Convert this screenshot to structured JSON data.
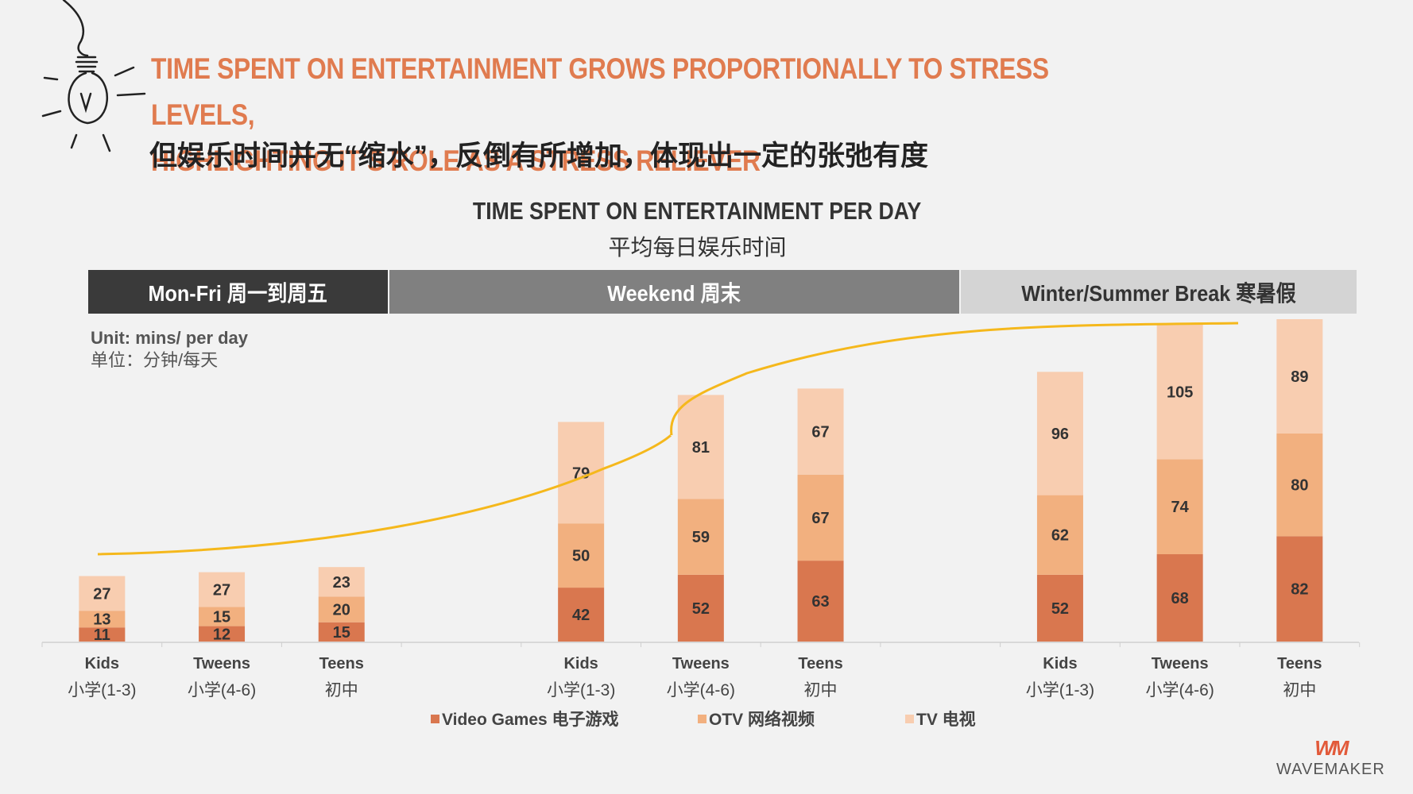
{
  "header": {
    "line1": "TIME SPENT ON ENTERTAINMENT GROWS PROPORTIONALLY TO STRESS LEVELS,",
    "line2": "HIGHLIGHTING IT’S ROLE AS A STRESS RELIEVER",
    "subtitle_cn": "但娱乐时间并无“缩水”，反倒有所增加，体现出一定的张弛有度"
  },
  "periods": [
    {
      "label": "Mon-Fri 周一到周五"
    },
    {
      "label": "Weekend 周末"
    },
    {
      "label": "Winter/Summer Break 寒暑假"
    }
  ],
  "unit": {
    "en": "Unit: mins/ per day",
    "cn": "单位：分钟/每天"
  },
  "logo": {
    "mark": "WM",
    "word": "WAVEMAKER"
  },
  "colors": {
    "video": "#d9774f",
    "otv": "#f2b07f",
    "tv": "#f8cdb0",
    "curve": "#f5b81c"
  },
  "chart_data": {
    "type": "bar",
    "stacked": true,
    "title": "TIME SPENT ON ENTERTAINMENT PER DAY",
    "subtitle": "平均每日娱乐时间",
    "groups": [
      "Mon-Fri 周一到周五",
      "Weekend 周末",
      "Winter/Summer Break 寒暑假"
    ],
    "categories": [
      {
        "en": "Kids",
        "cn": "小学(1-3)",
        "group": 0
      },
      {
        "en": "Tweens",
        "cn": "小学(4-6)",
        "group": 0
      },
      {
        "en": "Teens",
        "cn": "初中",
        "group": 0
      },
      {
        "en": "Kids",
        "cn": "小学(1-3)",
        "group": 1
      },
      {
        "en": "Tweens",
        "cn": "小学(4-6)",
        "group": 1
      },
      {
        "en": "Teens",
        "cn": "初中",
        "group": 1
      },
      {
        "en": "Kids",
        "cn": "小学(1-3)",
        "group": 2
      },
      {
        "en": "Tweens",
        "cn": "小学(4-6)",
        "group": 2
      },
      {
        "en": "Teens",
        "cn": "初中",
        "group": 2
      }
    ],
    "series": [
      {
        "name": "Video Games 电子游戏",
        "key": "video",
        "values": [
          11,
          12,
          15,
          42,
          52,
          63,
          52,
          68,
          82
        ]
      },
      {
        "name": "OTV 网络视频",
        "key": "otv",
        "values": [
          13,
          15,
          20,
          50,
          59,
          67,
          62,
          74,
          80
        ]
      },
      {
        "name": "TV 电视",
        "key": "tv",
        "values": [
          27,
          27,
          23,
          79,
          81,
          67,
          96,
          105,
          89
        ]
      }
    ],
    "ylim": [
      0,
      251
    ],
    "trend_line": "increasing S-curve across groups"
  }
}
